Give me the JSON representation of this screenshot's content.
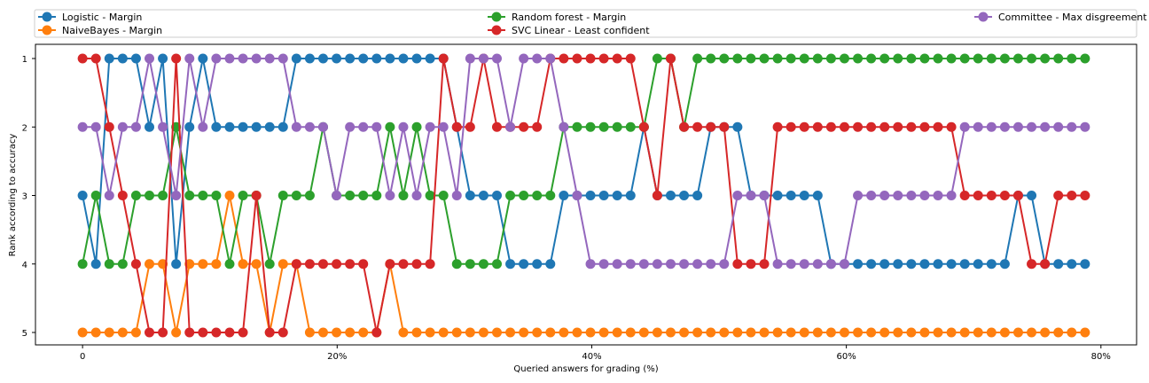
{
  "chart_data": {
    "type": "line",
    "title": "",
    "xlabel": "Queried answers for grading (%)",
    "ylabel": "Rank according to accuracy",
    "x_ticks": [
      "0",
      "20%",
      "40%",
      "60%",
      "80%"
    ],
    "y_ticks": [
      "1",
      "2",
      "3",
      "4",
      "5"
    ],
    "xlim": [
      -3.7,
      82.8
    ],
    "ylim": [
      1,
      5
    ],
    "y_inverted": true,
    "legend_position": "top",
    "grid": false,
    "x": [
      0.0,
      1.05,
      2.1,
      3.15,
      4.2,
      5.25,
      6.3,
      7.35,
      8.4,
      9.45,
      10.5,
      11.55,
      12.6,
      13.65,
      14.7,
      15.75,
      16.8,
      17.85,
      18.9,
      19.95,
      21.0,
      22.05,
      23.1,
      24.15,
      25.2,
      26.25,
      27.3,
      28.35,
      29.4,
      30.45,
      31.5,
      32.55,
      33.6,
      34.65,
      35.7,
      36.75,
      37.8,
      38.85,
      39.9,
      40.95,
      42.0,
      43.05,
      44.1,
      45.15,
      46.2,
      47.25,
      48.3,
      49.35,
      50.4,
      51.45,
      52.5,
      53.55,
      54.6,
      55.65,
      56.7,
      57.75,
      58.8,
      59.85,
      60.9,
      61.95,
      63.0,
      64.05,
      65.1,
      66.15,
      67.2,
      68.25,
      69.3,
      70.35,
      71.4,
      72.45,
      73.5,
      74.55,
      75.6,
      76.65,
      77.7,
      78.75
    ],
    "series": [
      {
        "name": "Logistic - Margin",
        "color": "#1f77b4",
        "values": [
          3,
          4,
          1,
          1,
          1,
          2,
          1,
          4,
          2,
          1,
          2,
          2,
          2,
          2,
          2,
          2,
          1,
          1,
          1,
          1,
          1,
          1,
          1,
          1,
          1,
          1,
          1,
          1,
          2,
          3,
          3,
          3,
          4,
          4,
          4,
          4,
          3,
          3,
          3,
          3,
          3,
          3,
          2,
          3,
          3,
          3,
          3,
          2,
          2,
          2,
          3,
          3,
          3,
          3,
          3,
          3,
          4,
          4,
          4,
          4,
          4,
          4,
          4,
          4,
          4,
          4,
          4,
          4,
          4,
          4,
          3,
          3,
          4,
          4,
          4,
          4
        ]
      },
      {
        "name": "NaiveBayes - Margin",
        "color": "#ff7f0e",
        "values": [
          5,
          5,
          5,
          5,
          5,
          4,
          4,
          5,
          4,
          4,
          4,
          3,
          4,
          4,
          5,
          4,
          4,
          5,
          5,
          5,
          5,
          5,
          5,
          4,
          5,
          5,
          5,
          5,
          5,
          5,
          5,
          5,
          5,
          5,
          5,
          5,
          5,
          5,
          5,
          5,
          5,
          5,
          5,
          5,
          5,
          5,
          5,
          5,
          5,
          5,
          5,
          5,
          5,
          5,
          5,
          5,
          5,
          5,
          5,
          5,
          5,
          5,
          5,
          5,
          5,
          5,
          5,
          5,
          5,
          5,
          5,
          5,
          5,
          5,
          5,
          5
        ]
      },
      {
        "name": "Random forest - Margin",
        "color": "#2ca02c",
        "values": [
          4,
          3,
          4,
          4,
          3,
          3,
          3,
          2,
          3,
          3,
          3,
          4,
          3,
          3,
          4,
          3,
          3,
          3,
          2,
          3,
          3,
          3,
          3,
          2,
          3,
          2,
          3,
          3,
          4,
          4,
          4,
          4,
          3,
          3,
          3,
          3,
          2,
          2,
          2,
          2,
          2,
          2,
          2,
          1,
          1,
          2,
          1,
          1,
          1,
          1,
          1,
          1,
          1,
          1,
          1,
          1,
          1,
          1,
          1,
          1,
          1,
          1,
          1,
          1,
          1,
          1,
          1,
          1,
          1,
          1,
          1,
          1,
          1,
          1,
          1,
          1
        ]
      },
      {
        "name": "SVC Linear - Least confident",
        "color": "#d62728",
        "values": [
          1,
          1,
          2,
          3,
          4,
          5,
          5,
          1,
          5,
          5,
          5,
          5,
          5,
          3,
          5,
          5,
          4,
          4,
          4,
          4,
          4,
          4,
          5,
          4,
          4,
          4,
          4,
          1,
          2,
          2,
          1,
          2,
          2,
          2,
          2,
          1,
          1,
          1,
          1,
          1,
          1,
          1,
          2,
          3,
          1,
          2,
          2,
          2,
          2,
          4,
          4,
          4,
          2,
          2,
          2,
          2,
          2,
          2,
          2,
          2,
          2,
          2,
          2,
          2,
          2,
          2,
          3,
          3,
          3,
          3,
          3,
          4,
          4,
          3,
          3,
          3
        ]
      },
      {
        "name": "Committee - Max disgreement",
        "color": "#9467bd",
        "values": [
          2,
          2,
          3,
          2,
          2,
          1,
          2,
          3,
          1,
          2,
          1,
          1,
          1,
          1,
          1,
          1,
          2,
          2,
          2,
          3,
          2,
          2,
          2,
          3,
          2,
          3,
          2,
          2,
          3,
          1,
          1,
          1,
          2,
          1,
          1,
          1,
          2,
          3,
          4,
          4,
          4,
          4,
          4,
          4,
          4,
          4,
          4,
          4,
          4,
          3,
          3,
          3,
          4,
          4,
          4,
          4,
          4,
          4,
          3,
          3,
          3,
          3,
          3,
          3,
          3,
          3,
          2,
          2,
          2,
          2,
          2,
          2,
          2,
          2,
          2,
          2
        ]
      }
    ]
  }
}
